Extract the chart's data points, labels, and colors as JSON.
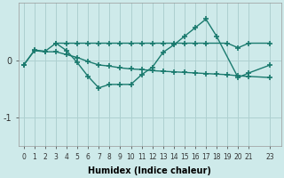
{
  "xlabel": "Humidex (Indice chaleur)",
  "line_color": "#1a7a6e",
  "bg_color": "#ceeaea",
  "grid_color": "#aed0d0",
  "series1_x": [
    3,
    4,
    5,
    6,
    7,
    8,
    9,
    10,
    11,
    12,
    13,
    14,
    15,
    16,
    17,
    19,
    20,
    21,
    23
  ],
  "series1_y": [
    0.3,
    0.3,
    0.3,
    0.3,
    0.3,
    0.3,
    0.3,
    0.3,
    0.3,
    0.3,
    0.3,
    0.3,
    0.3,
    0.3,
    0.3,
    0.3,
    0.22,
    0.3,
    0.3
  ],
  "series2_x": [
    0,
    1,
    2,
    3,
    4,
    5,
    6,
    7,
    8,
    9,
    10,
    11,
    12,
    13,
    14,
    15,
    16,
    17,
    18,
    20,
    21,
    23
  ],
  "series2_y": [
    -0.08,
    0.18,
    0.16,
    0.3,
    0.17,
    -0.04,
    -0.28,
    -0.48,
    -0.42,
    -0.42,
    -0.42,
    -0.25,
    -0.12,
    0.14,
    0.27,
    0.42,
    0.57,
    0.72,
    0.42,
    -0.3,
    -0.22,
    -0.08
  ],
  "series3_x": [
    0,
    1,
    2,
    3,
    4,
    5,
    6,
    7,
    8,
    9,
    10,
    11,
    12,
    13,
    14,
    15,
    16,
    17,
    18,
    19,
    20,
    21,
    23
  ],
  "series3_y": [
    -0.08,
    0.17,
    0.15,
    0.15,
    0.1,
    0.05,
    -0.02,
    -0.08,
    -0.1,
    -0.13,
    -0.15,
    -0.16,
    -0.18,
    -0.19,
    -0.2,
    -0.21,
    -0.22,
    -0.23,
    -0.24,
    -0.25,
    -0.27,
    -0.28,
    -0.3
  ],
  "xlim": [
    -0.5,
    24
  ],
  "ylim": [
    -1.5,
    1.0
  ],
  "yticks": [
    -1,
    0
  ],
  "xticks": [
    0,
    1,
    2,
    3,
    4,
    5,
    6,
    7,
    8,
    9,
    10,
    11,
    12,
    13,
    14,
    15,
    16,
    17,
    18,
    19,
    20,
    21,
    23
  ],
  "marker": "+",
  "markersize": 4,
  "linewidth": 1.0,
  "markeredgewidth": 1.2
}
